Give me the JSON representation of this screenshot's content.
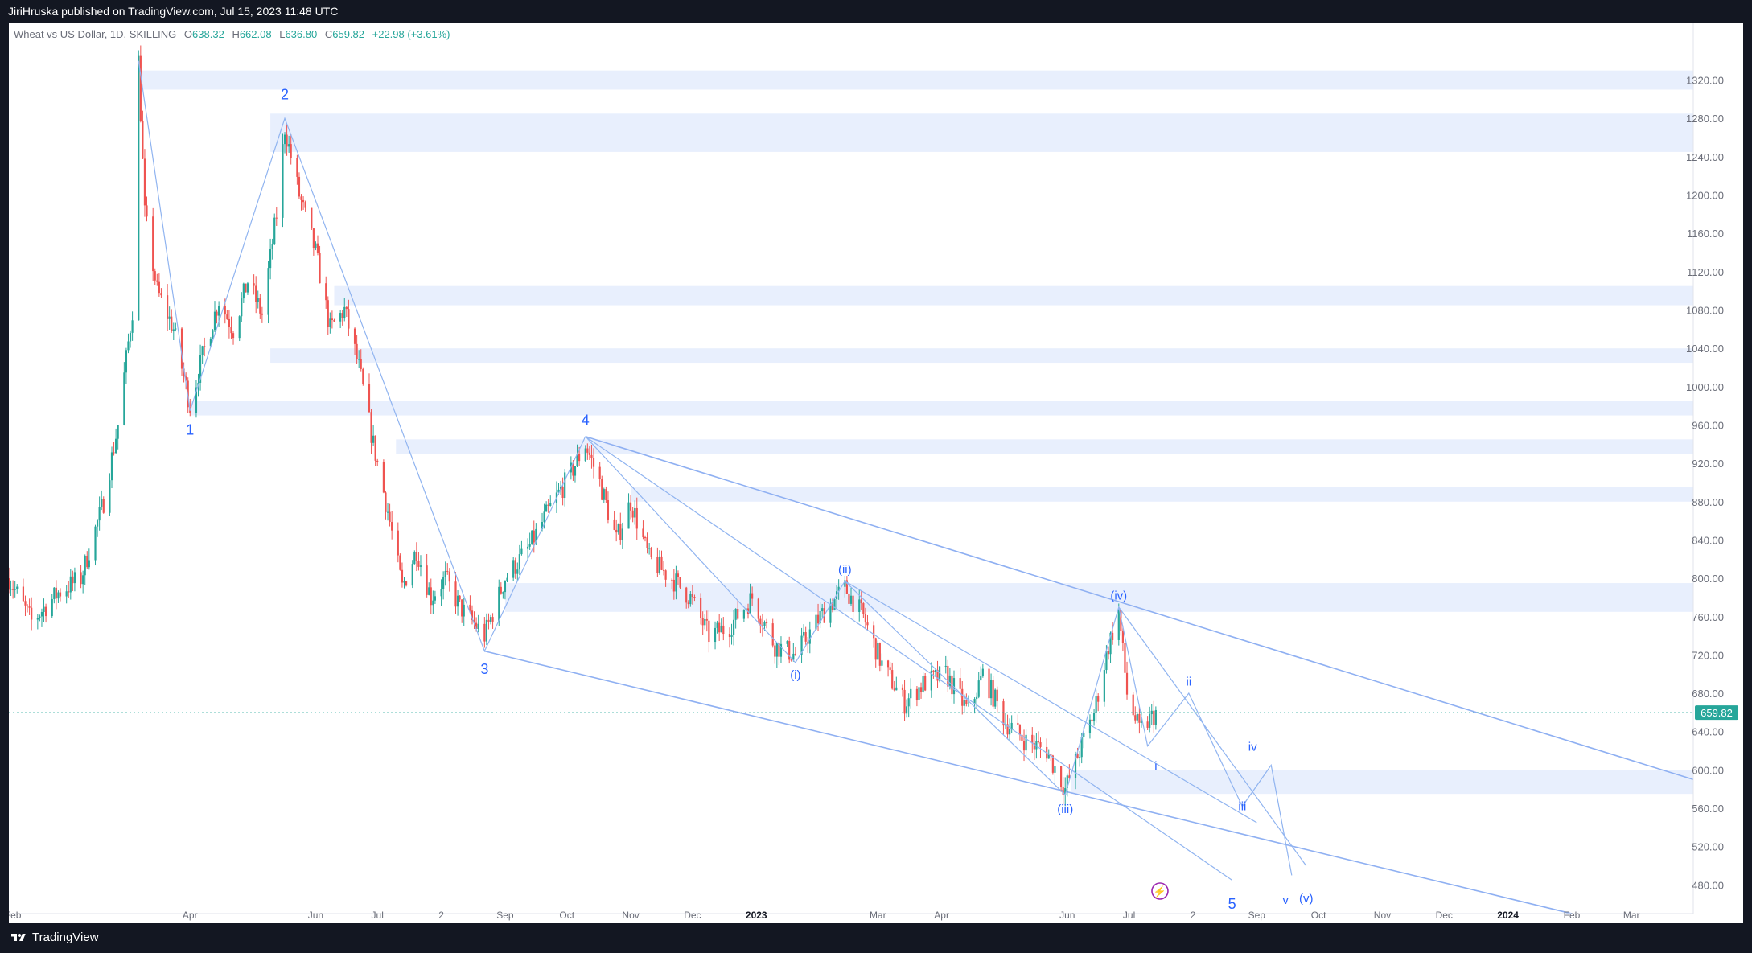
{
  "publish_line": "JiriHruska published on TradingView.com, Jul 15, 2023 11:48 UTC",
  "brand": "TradingView",
  "legend": {
    "symbol": "Wheat vs US Dollar, 1D, SKILLING",
    "open_label": "O",
    "open": "638.32",
    "high_label": "H",
    "high": "662.08",
    "low_label": "L",
    "low": "636.80",
    "close_label": "C",
    "close": "659.82",
    "change": "+22.98 (+3.61%)"
  },
  "colors": {
    "up": "#26a69a",
    "down": "#ef5350",
    "wave_line": "#90b4f0",
    "channel_line": "#8fb0f2",
    "zone": "#e8effd",
    "label": "#2962ff",
    "price_tag": "#26a69a",
    "event_icon": "#9c27b0"
  },
  "chart_data": {
    "type": "line",
    "title": "Wheat vs US Dollar, 1D, SKILLING",
    "x_tick_labels": [
      "Feb",
      "Apr",
      "Jun",
      "Jul",
      "2",
      "Sep",
      "Oct",
      "Nov",
      "Dec",
      "2023",
      "Mar",
      "Apr",
      "Jun",
      "Jul",
      "2",
      "Sep",
      "Oct",
      "Nov",
      "Dec",
      "2024",
      "Feb",
      "Mar"
    ],
    "y_tick_labels": [
      "480.00",
      "520.00",
      "560.00",
      "600.00",
      "640.00",
      "680.00",
      "720.00",
      "760.00",
      "800.00",
      "840.00",
      "880.00",
      "920.00",
      "960.00",
      "1000.00",
      "1040.00",
      "1080.00",
      "1120.00",
      "1160.00",
      "1200.00",
      "1240.00",
      "1280.00",
      "1320.00"
    ],
    "ylim": [
      440,
      1370
    ],
    "last_price": 659.82,
    "last_price_label": "659.82",
    "series": [
      {
        "name": "",
        "points": [
          [
            "2022-01-03",
            800
          ],
          [
            "2022-01-14",
            755
          ],
          [
            "2022-01-27",
            785
          ],
          [
            "2022-02-07",
            800
          ],
          [
            "2022-02-18",
            880
          ],
          [
            "2022-02-25",
            960
          ],
          [
            "2022-03-04",
            1080
          ],
          [
            "2022-03-07",
            1340
          ],
          [
            "2022-03-10",
            1180
          ],
          [
            "2022-03-16",
            1100
          ],
          [
            "2022-03-24",
            1060
          ],
          [
            "2022-04-01",
            980
          ],
          [
            "2022-04-08",
            1040
          ],
          [
            "2022-04-15",
            1090
          ],
          [
            "2022-04-22",
            1060
          ],
          [
            "2022-04-29",
            1110
          ],
          [
            "2022-05-06",
            1075
          ],
          [
            "2022-05-13",
            1180
          ],
          [
            "2022-05-17",
            1270
          ],
          [
            "2022-05-24",
            1200
          ],
          [
            "2022-06-01",
            1140
          ],
          [
            "2022-06-08",
            1060
          ],
          [
            "2022-06-15",
            1080
          ],
          [
            "2022-06-22",
            1020
          ],
          [
            "2022-06-29",
            940
          ],
          [
            "2022-07-06",
            870
          ],
          [
            "2022-07-13",
            790
          ],
          [
            "2022-07-20",
            830
          ],
          [
            "2022-07-27",
            780
          ],
          [
            "2022-08-03",
            800
          ],
          [
            "2022-08-10",
            770
          ],
          [
            "2022-08-22",
            740
          ],
          [
            "2022-09-01",
            800
          ],
          [
            "2022-09-12",
            830
          ],
          [
            "2022-09-22",
            870
          ],
          [
            "2022-10-03",
            910
          ],
          [
            "2022-10-10",
            940
          ],
          [
            "2022-10-17",
            900
          ],
          [
            "2022-10-25",
            840
          ],
          [
            "2022-11-01",
            880
          ],
          [
            "2022-11-10",
            820
          ],
          [
            "2022-11-21",
            800
          ],
          [
            "2022-11-30",
            780
          ],
          [
            "2022-12-09",
            740
          ],
          [
            "2022-12-19",
            750
          ],
          [
            "2022-12-30",
            780
          ],
          [
            "2023-01-10",
            730
          ],
          [
            "2023-01-20",
            720
          ],
          [
            "2023-02-01",
            760
          ],
          [
            "2023-02-13",
            790
          ],
          [
            "2023-02-22",
            760
          ],
          [
            "2023-03-03",
            710
          ],
          [
            "2023-03-14",
            670
          ],
          [
            "2023-03-23",
            690
          ],
          [
            "2023-04-03",
            700
          ],
          [
            "2023-04-14",
            660
          ],
          [
            "2023-04-21",
            700
          ],
          [
            "2023-05-02",
            650
          ],
          [
            "2023-05-12",
            630
          ],
          [
            "2023-05-22",
            620
          ],
          [
            "2023-05-31",
            580
          ],
          [
            "2023-06-07",
            620
          ],
          [
            "2023-06-14",
            660
          ],
          [
            "2023-06-21",
            730
          ],
          [
            "2023-06-26",
            765
          ],
          [
            "2023-06-30",
            680
          ],
          [
            "2023-07-06",
            640
          ],
          [
            "2023-07-14",
            659.82
          ]
        ]
      }
    ],
    "resistance_zones": [
      [
        1310,
        1330
      ],
      [
        1245,
        1285
      ],
      [
        1085,
        1105
      ],
      [
        1025,
        1040
      ],
      [
        970,
        985
      ],
      [
        930,
        945
      ],
      [
        880,
        895
      ],
      [
        765,
        795
      ],
      [
        575,
        600
      ]
    ],
    "wave_labels": [
      {
        "text": "1",
        "date": "2022-04-01",
        "price": 950
      },
      {
        "text": "2",
        "date": "2022-05-17",
        "price": 1300
      },
      {
        "text": "3",
        "date": "2022-08-22",
        "price": 700
      },
      {
        "text": "4",
        "date": "2022-10-10",
        "price": 960
      },
      {
        "text": "5",
        "date": "2023-08-20",
        "price": 455
      },
      {
        "text": "(i)",
        "date": "2023-01-20",
        "price": 695
      },
      {
        "text": "(ii)",
        "date": "2023-02-13",
        "price": 805
      },
      {
        "text": "(iii)",
        "date": "2023-05-31",
        "price": 555
      },
      {
        "text": "(iv)",
        "date": "2023-06-26",
        "price": 778
      },
      {
        "text": "(v)",
        "date": "2023-09-25",
        "price": 462
      },
      {
        "text": "i",
        "date": "2023-07-14",
        "price": 600
      },
      {
        "text": "ii",
        "date": "2023-07-30",
        "price": 688
      },
      {
        "text": "iii",
        "date": "2023-08-25",
        "price": 558
      },
      {
        "text": "iv",
        "date": "2023-08-30",
        "price": 620
      },
      {
        "text": "v",
        "date": "2023-09-15",
        "price": 460
      }
    ]
  }
}
